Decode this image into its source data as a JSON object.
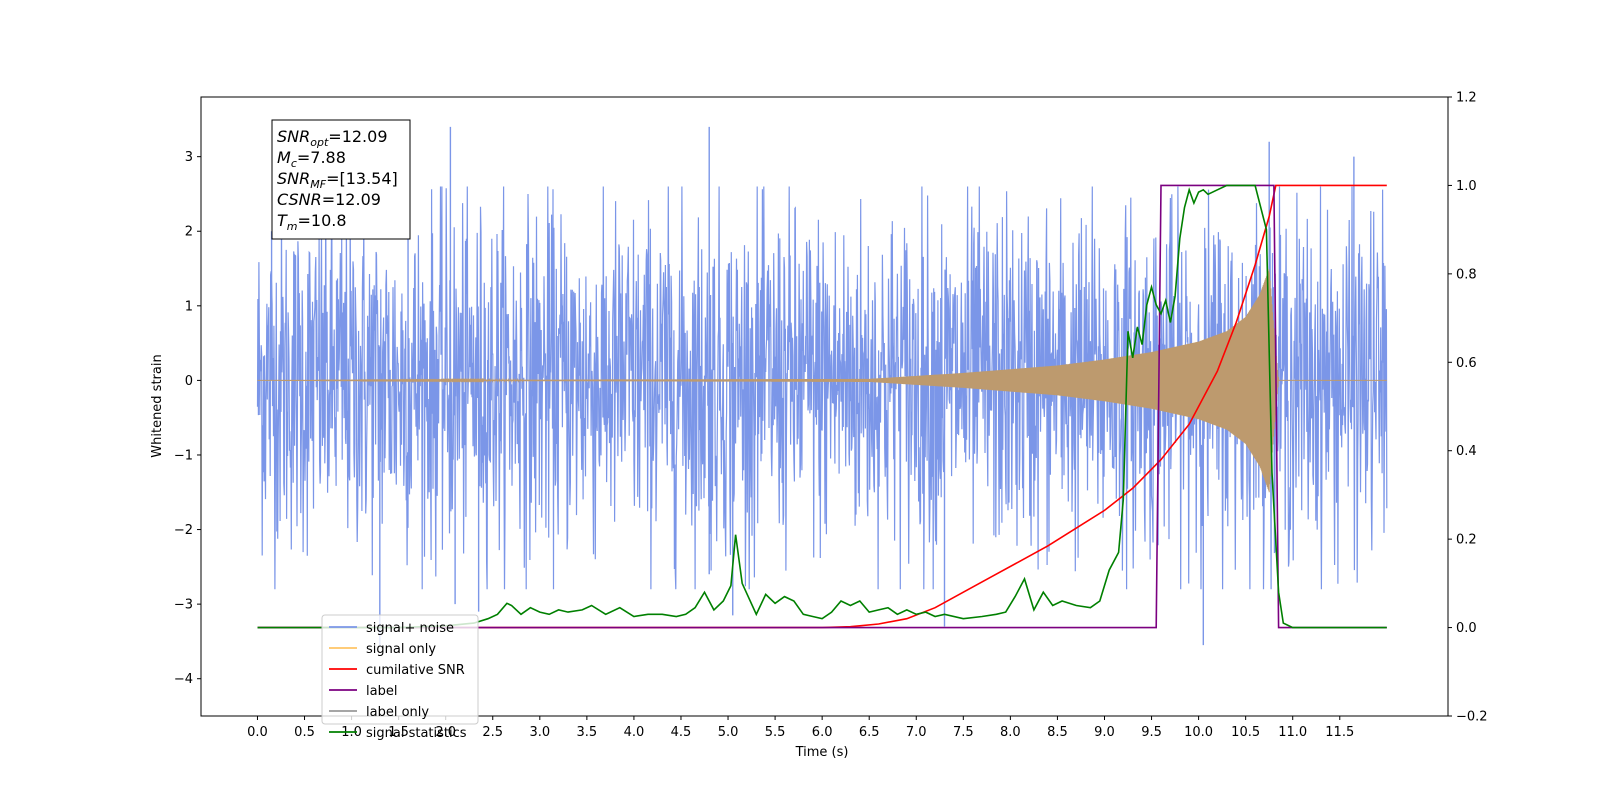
{
  "chart_data": {
    "type": "line",
    "xlabel": "Time (s)",
    "ylabel": "Whitened strain",
    "xlim": [
      -0.6,
      12.65
    ],
    "ylim": [
      -4.5,
      3.8
    ],
    "y2lim": [
      -0.2,
      1.2
    ],
    "xticks": [
      0.0,
      0.5,
      1.0,
      1.5,
      2.0,
      2.5,
      3.0,
      3.5,
      4.0,
      4.5,
      5.0,
      5.5,
      6.0,
      6.5,
      7.0,
      7.5,
      8.0,
      8.5,
      9.0,
      9.5,
      10.0,
      10.5,
      11.0,
      11.5
    ],
    "xtick_labels": [
      "0.0",
      "0.5",
      "1.0",
      "1.5",
      "2.0",
      "2.5",
      "3.0",
      "3.5",
      "4.0",
      "4.5",
      "5.0",
      "5.5",
      "6.0",
      "6.5",
      "7.0",
      "7.5",
      "8.0",
      "8.5",
      "9.0",
      "9.5",
      "10.0",
      "10.5",
      "11.0",
      "11.5"
    ],
    "yticks": [
      -4,
      -3,
      -2,
      -1,
      0,
      1,
      2,
      3
    ],
    "ytick_labels": [
      "−4",
      "−3",
      "−2",
      "−1",
      "0",
      "1",
      "2",
      "3"
    ],
    "y2ticks": [
      -0.2,
      0.0,
      0.2,
      0.4,
      0.6,
      0.8,
      1.0,
      1.2
    ],
    "y2tick_labels": [
      "−0.2",
      "0.0",
      "0.2",
      "0.4",
      "0.6",
      "0.8",
      "1.0",
      "1.2"
    ],
    "grid": false,
    "legend_position": "lower-left",
    "info_box": {
      "lines": [
        {
          "sym": "SNR",
          "sub": "opt",
          "value": "=12.09"
        },
        {
          "sym": "M",
          "sub": "c",
          "value": "=7.88"
        },
        {
          "sym": "SNR",
          "sub": "MF",
          "value": "=[13.54]"
        },
        {
          "sym": "CSNR",
          "sub": "",
          "value": "=12.09"
        },
        {
          "sym": "T",
          "sub": "m",
          "value": "=10.8"
        }
      ]
    },
    "series": [
      {
        "name": "signal+ noise",
        "axis": "left",
        "color": "#7b96e8",
        "x_range": [
          0.0,
          12.0
        ],
        "envelope": [
          [
            0.0,
            3.0
          ],
          [
            12.0,
            3.0
          ]
        ],
        "peak_points": [
          [
            0.15,
            2.0
          ],
          [
            1.3,
            -3.55
          ],
          [
            1.6,
            2.95
          ],
          [
            2.05,
            3.4
          ],
          [
            2.1,
            -3.0
          ],
          [
            2.35,
            -3.1
          ],
          [
            4.8,
            3.4
          ],
          [
            4.8,
            -2.6
          ],
          [
            5.05,
            -3.15
          ],
          [
            7.3,
            -3.3
          ],
          [
            10.05,
            -3.55
          ],
          [
            10.75,
            3.2
          ],
          [
            11.65,
            3.0
          ]
        ]
      },
      {
        "name": "signal only",
        "axis": "left",
        "color": "#ffc566",
        "x_range": [
          0.0,
          12.0
        ],
        "envelope": [
          [
            0.0,
            0.0
          ],
          [
            6.5,
            0.02
          ],
          [
            7.0,
            0.06
          ],
          [
            7.5,
            0.1
          ],
          [
            8.0,
            0.15
          ],
          [
            8.5,
            0.2
          ],
          [
            9.0,
            0.28
          ],
          [
            9.5,
            0.38
          ],
          [
            10.0,
            0.52
          ],
          [
            10.3,
            0.66
          ],
          [
            10.5,
            0.85
          ],
          [
            10.65,
            1.15
          ],
          [
            10.75,
            1.5
          ],
          [
            10.8,
            0.7
          ],
          [
            10.85,
            0.0
          ],
          [
            12.0,
            0.0
          ]
        ]
      },
      {
        "name": "cumilative SNR",
        "axis": "right",
        "color": "#ff0000",
        "x": [
          0.0,
          6.0,
          6.3,
          6.6,
          6.9,
          7.2,
          7.5,
          7.8,
          8.1,
          8.4,
          8.7,
          9.0,
          9.3,
          9.6,
          9.9,
          10.2,
          10.4,
          10.6,
          10.75,
          10.82,
          11.0,
          12.0
        ],
        "y": [
          0.0,
          0.0,
          0.002,
          0.008,
          0.02,
          0.045,
          0.08,
          0.115,
          0.15,
          0.185,
          0.225,
          0.265,
          0.315,
          0.38,
          0.46,
          0.58,
          0.69,
          0.82,
          0.93,
          1.0,
          1.0,
          1.0
        ]
      },
      {
        "name": "label",
        "axis": "right",
        "color": "#7b0080",
        "x": [
          0.0,
          9.55,
          9.6,
          10.8,
          10.85,
          12.0
        ],
        "y": [
          0.0,
          0.0,
          1.0,
          1.0,
          0.0,
          0.0
        ]
      },
      {
        "name": "label only",
        "axis": "right",
        "color": "#9a9a9a",
        "hidden": true,
        "x": [],
        "y": []
      },
      {
        "name": "signal statistics",
        "axis": "right",
        "color": "#008000",
        "x": [
          0.0,
          0.5,
          1.0,
          1.5,
          2.0,
          2.3,
          2.45,
          2.55,
          2.65,
          2.7,
          2.8,
          2.9,
          3.0,
          3.1,
          3.2,
          3.3,
          3.45,
          3.55,
          3.7,
          3.85,
          4.0,
          4.15,
          4.3,
          4.45,
          4.55,
          4.65,
          4.75,
          4.85,
          4.95,
          5.03,
          5.08,
          5.15,
          5.3,
          5.4,
          5.5,
          5.6,
          5.7,
          5.8,
          5.9,
          6.0,
          6.1,
          6.2,
          6.3,
          6.4,
          6.5,
          6.6,
          6.7,
          6.8,
          6.9,
          7.0,
          7.1,
          7.2,
          7.3,
          7.5,
          7.7,
          7.85,
          7.95,
          8.05,
          8.15,
          8.25,
          8.35,
          8.45,
          8.55,
          8.7,
          8.85,
          8.95,
          9.05,
          9.15,
          9.2,
          9.25,
          9.3,
          9.35,
          9.4,
          9.45,
          9.5,
          9.55,
          9.6,
          9.65,
          9.7,
          9.75,
          9.8,
          9.85,
          9.9,
          9.95,
          10.0,
          10.05,
          10.1,
          10.2,
          10.3,
          10.45,
          10.6,
          10.72,
          10.78,
          10.85,
          10.9,
          11.0,
          12.0
        ],
        "y": [
          0.0,
          0.0,
          0.0,
          0.0,
          0.004,
          0.01,
          0.02,
          0.03,
          0.055,
          0.05,
          0.03,
          0.045,
          0.035,
          0.03,
          0.04,
          0.035,
          0.04,
          0.05,
          0.03,
          0.045,
          0.025,
          0.03,
          0.03,
          0.025,
          0.03,
          0.045,
          0.08,
          0.04,
          0.06,
          0.095,
          0.21,
          0.1,
          0.03,
          0.075,
          0.055,
          0.07,
          0.06,
          0.03,
          0.025,
          0.02,
          0.035,
          0.06,
          0.05,
          0.06,
          0.035,
          0.04,
          0.045,
          0.03,
          0.04,
          0.03,
          0.035,
          0.025,
          0.03,
          0.02,
          0.025,
          0.03,
          0.035,
          0.07,
          0.11,
          0.04,
          0.08,
          0.05,
          0.06,
          0.05,
          0.045,
          0.06,
          0.13,
          0.17,
          0.29,
          0.67,
          0.61,
          0.68,
          0.64,
          0.73,
          0.77,
          0.73,
          0.71,
          0.74,
          0.69,
          0.75,
          0.88,
          0.95,
          0.99,
          0.96,
          0.985,
          0.99,
          0.98,
          0.99,
          1.0,
          1.0,
          1.0,
          0.9,
          0.35,
          0.08,
          0.01,
          0.0,
          0.0
        ]
      }
    ]
  }
}
